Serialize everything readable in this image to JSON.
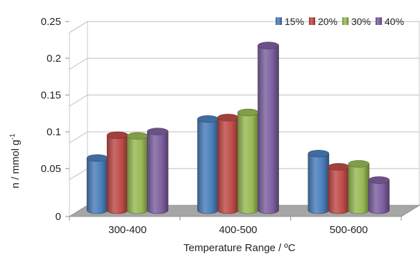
{
  "chart_data": {
    "type": "bar",
    "title": "",
    "xlabel": "Temperature Range / ºC",
    "ylabel": "n / mmol g",
    "ylabel_superscript": "-1",
    "ylim": [
      0,
      0.25
    ],
    "yticks": [
      "0",
      "0.05",
      "0.1",
      "0.15",
      "0.2",
      "0.25"
    ],
    "categories": [
      "300-400",
      "400-500",
      "500-600"
    ],
    "grid": true,
    "legend_position": "top-right",
    "series": [
      {
        "name": "15%",
        "color": "#4a7ebb",
        "values": [
          0.071,
          0.124,
          0.077
        ]
      },
      {
        "name": "20%",
        "color": "#be4b48",
        "values": [
          0.102,
          0.126,
          0.059
        ]
      },
      {
        "name": "30%",
        "color": "#98b954",
        "values": [
          0.101,
          0.133,
          0.063
        ]
      },
      {
        "name": "40%",
        "color": "#7d60a0",
        "values": [
          0.107,
          0.224,
          0.041
        ]
      }
    ]
  }
}
